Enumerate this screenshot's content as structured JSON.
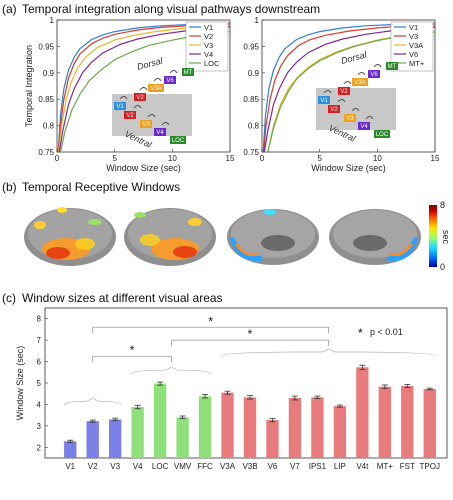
{
  "panels": {
    "a": {
      "label": "(a)",
      "title": "Temporal integration along visual pathways downstream"
    },
    "b": {
      "label": "(b)",
      "title": "Temporal Receptive Windows"
    },
    "c": {
      "label": "(c)",
      "title": "Window sizes at different visual areas"
    }
  },
  "colorbar": {
    "label": "sec",
    "max_label": "8",
    "min_label": "0",
    "colors": [
      "#0000a0",
      "#0070ff",
      "#20e0ff",
      "#a0ff60",
      "#ffe000",
      "#ff6000",
      "#d00000",
      "#800000"
    ]
  },
  "inset_a1": {
    "dorsal_label": "Dorsal",
    "ventral_label": "Ventral",
    "boxes": [
      {
        "text": "V1",
        "color": "#2f8fe0"
      },
      {
        "text": "V2",
        "color": "#d42020"
      },
      {
        "text": "V3",
        "color": "#f0a020"
      },
      {
        "text": "V4",
        "color": "#6a2ad0"
      },
      {
        "text": "LOC",
        "color": "#2a8a2a"
      },
      {
        "text": "V2",
        "color": "#d42020"
      },
      {
        "text": "V3A",
        "color": "#f0a020"
      },
      {
        "text": "V6",
        "color": "#6a2ad0"
      },
      {
        "text": "MT",
        "color": "#2a8a2a"
      }
    ]
  },
  "inset_a2": {
    "dorsal_label": "Dorsal",
    "ventral_label": "Ventral",
    "boxes": [
      {
        "text": "V1",
        "color": "#2f8fe0"
      },
      {
        "text": "V2",
        "color": "#d42020"
      },
      {
        "text": "V3",
        "color": "#f0a020"
      },
      {
        "text": "V4",
        "color": "#6a2ad0"
      },
      {
        "text": "LOC",
        "color": "#2a8a2a"
      },
      {
        "text": "V2",
        "color": "#d42020"
      },
      {
        "text": "V3A",
        "color": "#f0a020"
      },
      {
        "text": "V6",
        "color": "#6a2ad0"
      },
      {
        "text": "MT",
        "color": "#2a8a2a"
      }
    ]
  },
  "chart_data": [
    {
      "type": "line",
      "xlabel": "Window Size (sec)",
      "ylabel": "Temporal Integration",
      "xlim": [
        0,
        15
      ],
      "ylim": [
        0.75,
        1.0
      ],
      "xticks": [
        0,
        5,
        10,
        15
      ],
      "yticks": [
        0.75,
        0.8,
        0.85,
        0.9,
        0.95,
        1
      ],
      "legend_position": "top-right",
      "series": [
        {
          "name": "V1",
          "color": "#2f7fd6",
          "x": [
            0.1,
            0.3,
            0.6,
            1,
            1.5,
            2,
            3,
            4,
            5,
            7,
            9,
            12,
            15
          ],
          "y": [
            0.75,
            0.82,
            0.87,
            0.905,
            0.93,
            0.946,
            0.963,
            0.972,
            0.978,
            0.985,
            0.989,
            0.992,
            0.994
          ]
        },
        {
          "name": "V2",
          "color": "#d63a2f",
          "x": [
            0.1,
            0.3,
            0.6,
            1,
            1.5,
            2,
            3,
            4,
            5,
            7,
            9,
            12,
            15
          ],
          "y": [
            0.75,
            0.8,
            0.85,
            0.89,
            0.918,
            0.936,
            0.955,
            0.966,
            0.973,
            0.981,
            0.986,
            0.99,
            0.992
          ]
        },
        {
          "name": "V3",
          "color": "#e6b62a",
          "x": [
            0.15,
            0.4,
            0.8,
            1.2,
            1.8,
            2.5,
            3.5,
            5,
            6.5,
            8.5,
            11,
            13,
            15
          ],
          "y": [
            0.75,
            0.8,
            0.85,
            0.88,
            0.91,
            0.93,
            0.948,
            0.962,
            0.97,
            0.978,
            0.984,
            0.988,
            0.99
          ]
        },
        {
          "name": "V4",
          "color": "#7a2a9a",
          "x": [
            0.2,
            0.5,
            1,
            1.5,
            2.2,
            3,
            4,
            5.5,
            7,
            9,
            11,
            13,
            15
          ],
          "y": [
            0.75,
            0.79,
            0.84,
            0.87,
            0.9,
            0.92,
            0.938,
            0.954,
            0.964,
            0.973,
            0.979,
            0.984,
            0.987
          ]
        },
        {
          "name": "LOC",
          "color": "#6aa84f",
          "x": [
            0.3,
            0.7,
            1.3,
            2,
            2.8,
            3.8,
            5,
            6.5,
            8,
            10,
            12,
            13.5,
            15
          ],
          "y": [
            0.75,
            0.79,
            0.83,
            0.86,
            0.885,
            0.905,
            0.925,
            0.94,
            0.952,
            0.962,
            0.97,
            0.975,
            0.978
          ]
        }
      ]
    },
    {
      "type": "line",
      "xlabel": "Window Size (sec)",
      "ylabel": "",
      "xlim": [
        0,
        15
      ],
      "ylim": [
        0.75,
        1.0
      ],
      "xticks": [
        0,
        5,
        10,
        15
      ],
      "yticks": [
        0.75,
        0.8,
        0.85,
        0.9,
        0.95,
        1
      ],
      "legend_position": "top-right",
      "series": [
        {
          "name": "V1",
          "color": "#2f7fd6",
          "x": [
            0.1,
            0.3,
            0.6,
            1,
            1.5,
            2,
            3,
            4,
            5,
            7,
            9,
            12,
            15
          ],
          "y": [
            0.75,
            0.82,
            0.87,
            0.905,
            0.93,
            0.946,
            0.963,
            0.972,
            0.978,
            0.985,
            0.989,
            0.992,
            0.994
          ]
        },
        {
          "name": "V3",
          "color": "#d63a2f",
          "x": [
            0.15,
            0.35,
            0.7,
            1.1,
            1.6,
            2.2,
            3.2,
            4.2,
            5.5,
            7.5,
            10,
            12.5,
            15
          ],
          "y": [
            0.75,
            0.8,
            0.85,
            0.885,
            0.912,
            0.932,
            0.952,
            0.963,
            0.971,
            0.979,
            0.985,
            0.989,
            0.991
          ]
        },
        {
          "name": "V3A",
          "color": "#e6b62a",
          "x": [
            0.5,
            1,
            1.6,
            2.3,
            3,
            4,
            5,
            6.5,
            8,
            10,
            12,
            13.5,
            15
          ],
          "y": [
            0.75,
            0.8,
            0.84,
            0.87,
            0.89,
            0.91,
            0.925,
            0.94,
            0.951,
            0.962,
            0.97,
            0.975,
            0.978
          ]
        },
        {
          "name": "V6",
          "color": "#7a2a9a",
          "x": [
            0.2,
            0.5,
            1,
            1.5,
            2.2,
            3,
            4,
            5.5,
            7,
            9,
            11,
            13,
            15
          ],
          "y": [
            0.75,
            0.79,
            0.84,
            0.87,
            0.9,
            0.92,
            0.938,
            0.954,
            0.964,
            0.973,
            0.979,
            0.984,
            0.987
          ]
        },
        {
          "name": "MT+",
          "color": "#6aa84f",
          "x": [
            0.5,
            1,
            1.6,
            2.3,
            3,
            4,
            5,
            6.5,
            8,
            10,
            12,
            13.5,
            15
          ],
          "y": [
            0.75,
            0.795,
            0.835,
            0.865,
            0.888,
            0.908,
            0.923,
            0.938,
            0.95,
            0.961,
            0.969,
            0.974,
            0.977
          ]
        }
      ]
    },
    {
      "type": "bar",
      "ylabel": "Window Size (sec)",
      "ylim": [
        1.5,
        8.5
      ],
      "yticks": [
        2,
        3,
        4,
        5,
        6,
        7,
        8
      ],
      "categories": [
        "V1",
        "V2",
        "V3",
        "V4",
        "LOC",
        "VMV",
        "FFC",
        "V3A",
        "V3B",
        "V6",
        "V7",
        "IPS1",
        "LIP",
        "V4t",
        "MT+",
        "FST",
        "TPOJ"
      ],
      "values": [
        2.28,
        3.22,
        3.3,
        3.88,
        4.97,
        3.4,
        4.38,
        4.55,
        4.33,
        3.27,
        4.3,
        4.33,
        3.92,
        5.73,
        4.83,
        4.86,
        4.72
      ],
      "errors": [
        0.05,
        0.05,
        0.06,
        0.08,
        0.07,
        0.06,
        0.08,
        0.07,
        0.08,
        0.08,
        0.09,
        0.06,
        0.05,
        0.1,
        0.08,
        0.07,
        0.04
      ],
      "colors": [
        "#7b7fe8",
        "#7b7fe8",
        "#7b7fe8",
        "#8fe07a",
        "#8fe07a",
        "#8fe07a",
        "#8fe07a",
        "#e87b7b",
        "#e87b7b",
        "#e87b7b",
        "#e87b7b",
        "#e87b7b",
        "#e87b7b",
        "#e87b7b",
        "#e87b7b",
        "#e87b7b",
        "#e87b7b"
      ],
      "significance_marks": [
        "*",
        "*",
        "*"
      ],
      "significance_legend": "p < 0.01",
      "significance_star": "*"
    }
  ]
}
